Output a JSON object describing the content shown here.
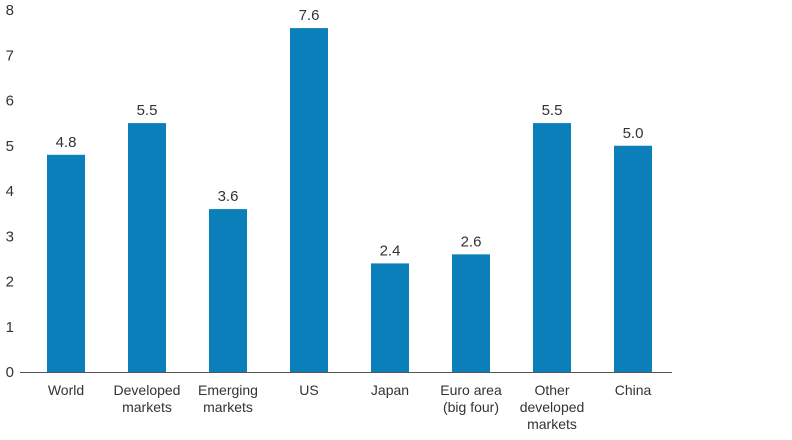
{
  "chart_data": {
    "type": "bar",
    "title": "",
    "xlabel": "",
    "ylabel": "",
    "categories": [
      [
        "World"
      ],
      [
        "Developed",
        "markets"
      ],
      [
        "Emerging",
        "markets"
      ],
      [
        "US"
      ],
      [
        "Japan"
      ],
      [
        "Euro area",
        "(big four)"
      ],
      [
        "Other",
        "developed",
        "markets"
      ],
      [
        "China"
      ]
    ],
    "values": [
      4.8,
      5.5,
      3.6,
      7.6,
      2.4,
      2.6,
      5.5,
      5.0
    ],
    "data_labels": [
      "4.8",
      "5.5",
      "3.6",
      "7.6",
      "2.4",
      "2.6",
      "5.5",
      "5.0"
    ],
    "ylim": [
      0,
      8
    ],
    "yticks": [
      0,
      1,
      2,
      3,
      4,
      5,
      6,
      7,
      8
    ],
    "grid": false,
    "legend": "none",
    "colors": {
      "bar": "#0a7fba",
      "axis": "#555555",
      "text": "#333333"
    }
  }
}
